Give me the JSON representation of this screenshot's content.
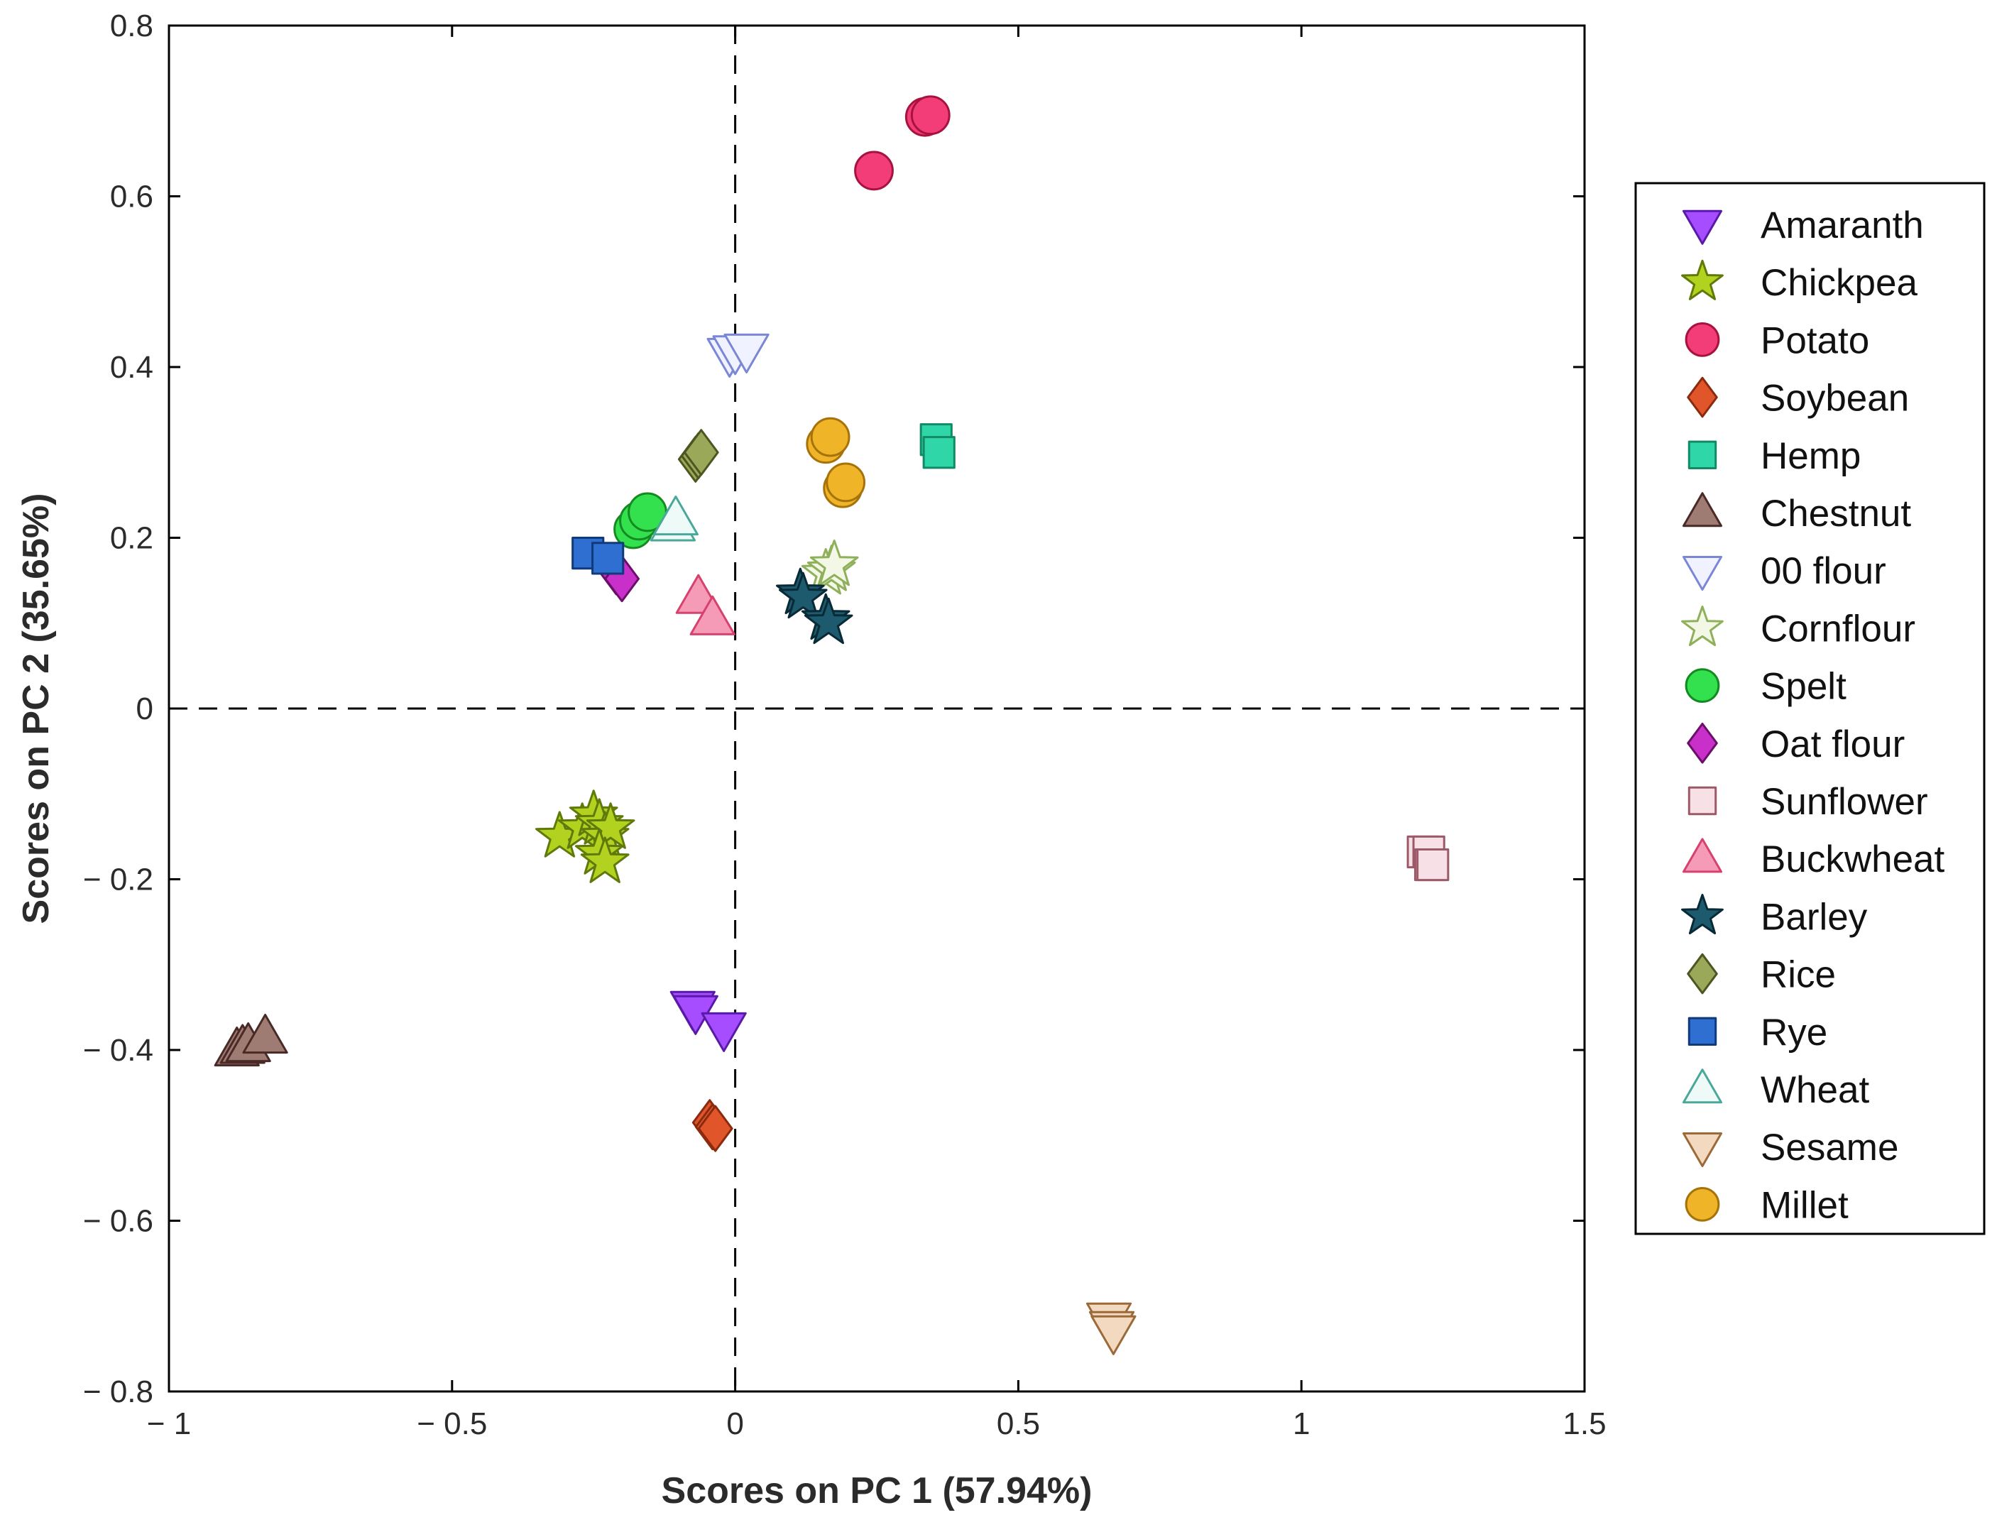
{
  "chart_data": {
    "type": "scatter",
    "title": "",
    "xlabel": "Scores on PC 1 (57.94%)",
    "ylabel": "Scores on PC 2 (35.65%)",
    "xlim": [
      -1,
      1.5
    ],
    "ylim": [
      -0.8,
      0.8
    ],
    "xticks": [
      -1,
      -0.5,
      0,
      0.5,
      1,
      1.5
    ],
    "yticks": [
      -0.8,
      -0.6,
      -0.4,
      -0.2,
      0,
      0.2,
      0.4,
      0.6,
      0.8
    ],
    "xtick_labels": [
      "− 1",
      "− 0.5",
      "0",
      "0.5",
      "1",
      "1.5"
    ],
    "ytick_labels": [
      "− 0.8",
      "− 0.6",
      "− 0.4",
      "− 0.2",
      "0",
      "0.2",
      "0.4",
      "0.6",
      "0.8"
    ],
    "reference_lines": {
      "x": 0,
      "y": 0,
      "style": "dashed"
    },
    "grid": false,
    "legend_position": "right",
    "series": [
      {
        "name": "Amaranth",
        "marker": "triangle-down",
        "fill": "#a64dff",
        "stroke": "#5a1aa8",
        "points": [
          [
            -0.075,
            -0.35
          ],
          [
            -0.07,
            -0.355
          ],
          [
            -0.02,
            -0.375
          ]
        ]
      },
      {
        "name": "Chickpea",
        "marker": "star",
        "fill": "#b3d11f",
        "stroke": "#5f7a0a",
        "points": [
          [
            -0.31,
            -0.15
          ],
          [
            -0.27,
            -0.14
          ],
          [
            -0.25,
            -0.125
          ],
          [
            -0.24,
            -0.135
          ],
          [
            -0.23,
            -0.15
          ],
          [
            -0.22,
            -0.14
          ],
          [
            -0.24,
            -0.17
          ],
          [
            -0.23,
            -0.18
          ]
        ]
      },
      {
        "name": "Potato",
        "marker": "circle",
        "fill": "#f23d78",
        "stroke": "#a8123f",
        "points": [
          [
            0.245,
            0.63
          ],
          [
            0.335,
            0.693
          ],
          [
            0.345,
            0.695
          ]
        ]
      },
      {
        "name": "Soybean",
        "marker": "diamond",
        "fill": "#e0552a",
        "stroke": "#8a2a0f",
        "points": [
          [
            -0.045,
            -0.485
          ],
          [
            -0.04,
            -0.49
          ],
          [
            -0.035,
            -0.492
          ]
        ]
      },
      {
        "name": "Hemp",
        "marker": "square",
        "fill": "#2ed6a8",
        "stroke": "#138a66",
        "points": [
          [
            0.355,
            0.315
          ],
          [
            0.36,
            0.3
          ]
        ]
      },
      {
        "name": "Chestnut",
        "marker": "triangle-up",
        "fill": "#9e7c74",
        "stroke": "#4a2a26",
        "points": [
          [
            -0.88,
            -0.4
          ],
          [
            -0.87,
            -0.397
          ],
          [
            -0.86,
            -0.395
          ],
          [
            -0.83,
            -0.385
          ]
        ]
      },
      {
        "name": "00 flour",
        "marker": "triangle-down",
        "fill": "#f0f2ff",
        "stroke": "#7a86d6",
        "points": [
          [
            -0.01,
            0.415
          ],
          [
            0.0,
            0.418
          ],
          [
            0.02,
            0.42
          ]
        ]
      },
      {
        "name": "Cornflour",
        "marker": "star",
        "fill": "#f3f8e6",
        "stroke": "#8fb05a",
        "points": [
          [
            0.16,
            0.158
          ],
          [
            0.17,
            0.162
          ],
          [
            0.175,
            0.168
          ]
        ]
      },
      {
        "name": "Spelt",
        "marker": "circle",
        "fill": "#33e04d",
        "stroke": "#148a22",
        "points": [
          [
            -0.18,
            0.21
          ],
          [
            -0.17,
            0.22
          ],
          [
            -0.155,
            0.23
          ]
        ]
      },
      {
        "name": "Oat flour",
        "marker": "diamond",
        "fill": "#c930c9",
        "stroke": "#6b0f6b",
        "points": [
          [
            -0.21,
            0.16
          ],
          [
            -0.2,
            0.152
          ]
        ]
      },
      {
        "name": "Sunflower",
        "marker": "square",
        "fill": "#f7e1e6",
        "stroke": "#9c5a68",
        "points": [
          [
            1.215,
            -0.168
          ],
          [
            1.225,
            -0.168
          ],
          [
            1.228,
            -0.183
          ],
          [
            1.232,
            -0.183
          ]
        ]
      },
      {
        "name": "Buckwheat",
        "marker": "triangle-up",
        "fill": "#f59bb8",
        "stroke": "#d6416e",
        "points": [
          [
            -0.065,
            0.13
          ],
          [
            -0.04,
            0.105
          ]
        ]
      },
      {
        "name": "Barley",
        "marker": "star",
        "fill": "#1d5a6e",
        "stroke": "#082a36",
        "points": [
          [
            0.115,
            0.135
          ],
          [
            0.12,
            0.13
          ],
          [
            0.16,
            0.105
          ],
          [
            0.165,
            0.1
          ]
        ]
      },
      {
        "name": "Rice",
        "marker": "diamond",
        "fill": "#9aa85a",
        "stroke": "#4d5520",
        "points": [
          [
            -0.07,
            0.292
          ],
          [
            -0.065,
            0.296
          ],
          [
            -0.06,
            0.3
          ]
        ]
      },
      {
        "name": "Rye",
        "marker": "square",
        "fill": "#2f6fd1",
        "stroke": "#103a7a",
        "points": [
          [
            -0.26,
            0.182
          ],
          [
            -0.225,
            0.176
          ]
        ]
      },
      {
        "name": "Wheat",
        "marker": "triangle-up",
        "fill": "#eefaf7",
        "stroke": "#4aa89a",
        "points": [
          [
            -0.11,
            0.215
          ],
          [
            -0.105,
            0.222
          ]
        ]
      },
      {
        "name": "Sesame",
        "marker": "triangle-down",
        "fill": "#f2d9bf",
        "stroke": "#9c6a38",
        "points": [
          [
            0.66,
            -0.715
          ],
          [
            0.665,
            -0.725
          ],
          [
            0.668,
            -0.73
          ]
        ]
      },
      {
        "name": "Millet",
        "marker": "circle",
        "fill": "#f0b429",
        "stroke": "#a6730a",
        "points": [
          [
            0.16,
            0.31
          ],
          [
            0.168,
            0.318
          ],
          [
            0.19,
            0.258
          ],
          [
            0.195,
            0.265
          ]
        ]
      }
    ]
  }
}
